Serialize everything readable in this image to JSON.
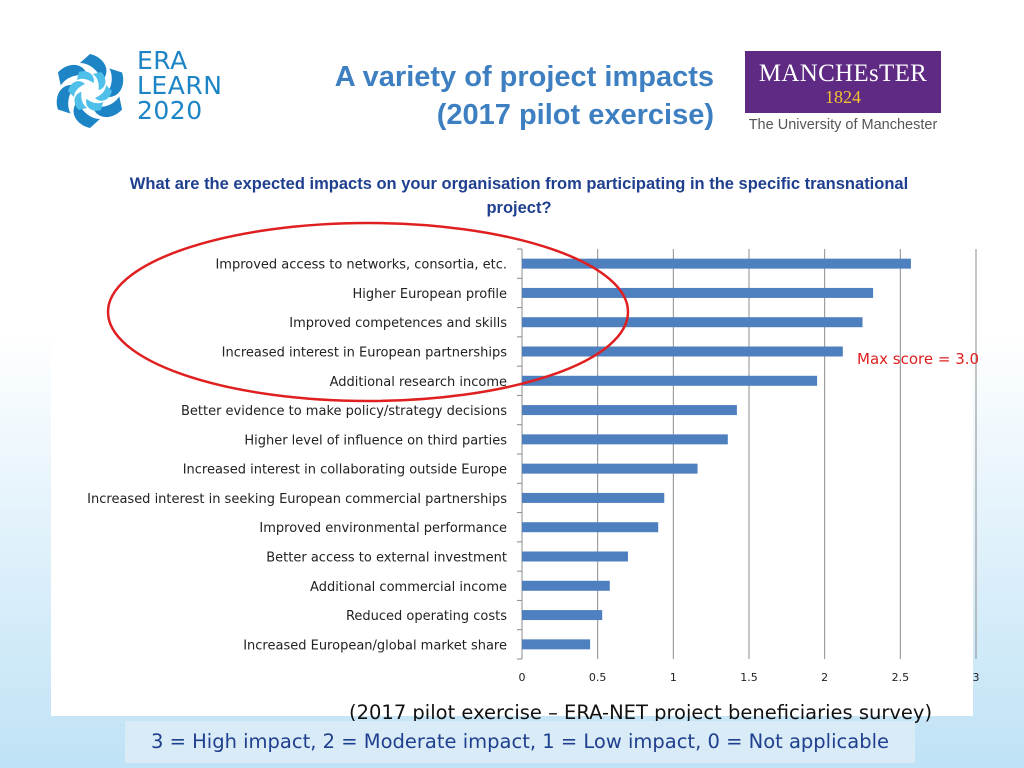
{
  "header": {
    "logo_left_lines": [
      "ERA",
      "LEARN",
      "2020"
    ],
    "title_line1": "A variety of project impacts",
    "title_line2": "(2017 pilot exercise)",
    "manchester_name": "MANCHEsTER",
    "manchester_year": "1824",
    "manchester_sub": "The University of Manchester"
  },
  "question": "What are the expected impacts on your organisation from participating in the specific transnational project?",
  "annotations": {
    "max_score": "Max score = 3.0",
    "survey_note": "(2017 pilot exercise – ERA-NET project beneficiaries survey)",
    "scale_legend": "3 = High impact, 2 = Moderate impact, 1 = Low impact, 0 = Not applicable"
  },
  "colors": {
    "bar": "#4e7fbf",
    "title": "#3d7fc1",
    "question": "#1f3f8f",
    "highlight": "#e02020",
    "manchester_purple": "#5e2a84"
  },
  "chart_data": {
    "type": "bar",
    "orientation": "horizontal",
    "categories": [
      "Improved access to networks, consortia, etc.",
      "Higher European profile",
      "Improved competences and skills",
      "Increased interest in European partnerships",
      "Additional research income",
      "Better evidence to make policy/strategy decisions",
      "Higher level of influence on third parties",
      "Increased interest in collaborating outside Europe",
      "Increased interest in seeking European commercial partnerships",
      "Improved environmental performance",
      "Better access to external investment",
      "Additional commercial income",
      "Reduced operating costs",
      "Increased European/global market share"
    ],
    "values": [
      2.57,
      2.32,
      2.25,
      2.12,
      1.95,
      1.42,
      1.36,
      1.16,
      0.94,
      0.9,
      0.7,
      0.58,
      0.53,
      0.45
    ],
    "xlim": [
      0,
      3
    ],
    "xticks": [
      "0",
      "0.5",
      "1",
      "1.5",
      "2",
      "2.5",
      "3"
    ],
    "xlabel": "",
    "ylabel": "",
    "grid": true,
    "highlighted_top_n": 5
  }
}
